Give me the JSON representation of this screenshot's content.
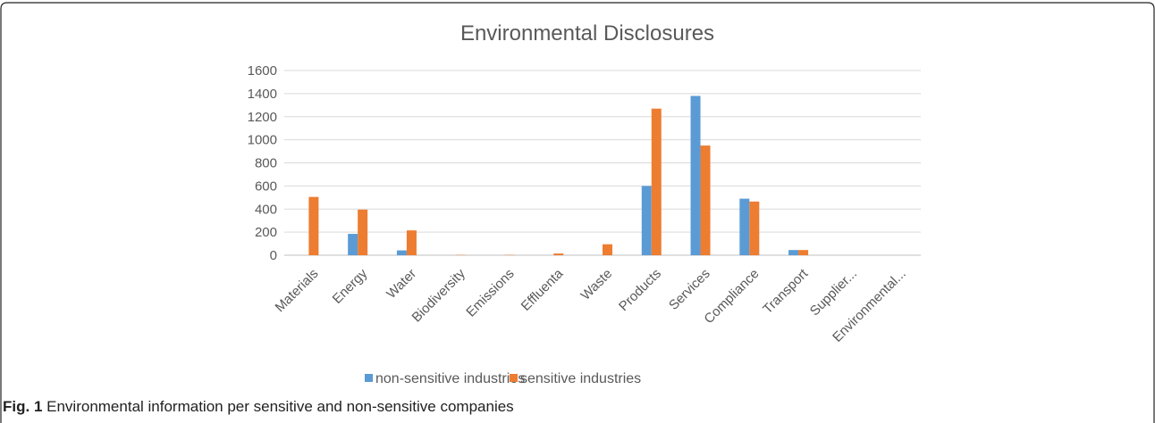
{
  "chart_data": {
    "type": "bar",
    "title": "Environmental Disclosures",
    "xlabel": "",
    "ylabel": "",
    "ylim": [
      0,
      1600
    ],
    "yticks": [
      0,
      200,
      400,
      600,
      800,
      1000,
      1200,
      1400,
      1600
    ],
    "grid": true,
    "legend_position": "bottom",
    "categories": [
      "Materials",
      "Energy",
      "Water",
      "Biodiversity",
      "Emissions",
      "Effluenta",
      "Waste",
      "Products",
      "Services",
      "Compliance",
      "Transport",
      "Supplier...",
      "Environmental..."
    ],
    "series": [
      {
        "name": "non-sensitive industries",
        "color": "#5B9BD5",
        "values": [
          0,
          185,
          42,
          0,
          0,
          0,
          0,
          600,
          1380,
          490,
          45,
          0,
          0
        ]
      },
      {
        "name": "sensitive industries",
        "color": "#ED7D31",
        "values": [
          505,
          395,
          215,
          3,
          3,
          15,
          95,
          1270,
          950,
          465,
          45,
          0,
          0
        ]
      }
    ]
  },
  "caption": {
    "label": "Fig. 1",
    "text": " Environmental information per sensitive and non-sensitive companies"
  }
}
